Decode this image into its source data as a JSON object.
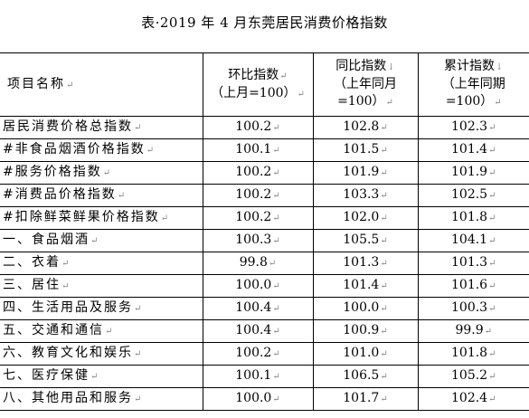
{
  "title": "表·2019 年 4 月东莞居民消费价格指数",
  "headers": {
    "item": "项目名称",
    "mom": [
      "环比指数",
      "（上月=100）"
    ],
    "yoy": [
      "同比指数",
      "（上年同月",
      "=100）"
    ],
    "cum": [
      "累计指数",
      "（上年同期",
      "=100）"
    ]
  },
  "rows": [
    {
      "name": "居民消费价格总指数",
      "mom": "100.2",
      "yoy": "102.8",
      "cum": "102.3"
    },
    {
      "name": "#非食品烟酒价格指数",
      "mom": "100.1",
      "yoy": "101.5",
      "cum": "101.4"
    },
    {
      "name": "#服务价格指数",
      "mom": "100.2",
      "yoy": "101.9",
      "cum": "101.9"
    },
    {
      "name": "#消费品价格指数",
      "mom": "100.2",
      "yoy": "103.3",
      "cum": "102.5"
    },
    {
      "name": "#扣除鲜菜鲜果价格指数",
      "mom": "100.2",
      "yoy": "102.0",
      "cum": "101.8"
    },
    {
      "name": "一、食品烟酒",
      "mom": "100.3",
      "yoy": "105.5",
      "cum": "104.1"
    },
    {
      "name": "二、衣着",
      "mom": "99.8",
      "yoy": "101.3",
      "cum": "101.3"
    },
    {
      "name": "三、居住",
      "mom": "100.0",
      "yoy": "101.4",
      "cum": "101.6"
    },
    {
      "name": "四、生活用品及服务",
      "mom": "100.4",
      "yoy": "100.0",
      "cum": "100.3"
    },
    {
      "name": "五、交通和通信",
      "mom": "100.4",
      "yoy": "100.9",
      "cum": "99.9"
    },
    {
      "name": "六、教育文化和娱乐",
      "mom": "100.2",
      "yoy": "101.0",
      "cum": "101.8"
    },
    {
      "name": "七、医疗保健",
      "mom": "100.1",
      "yoy": "106.5",
      "cum": "105.2"
    },
    {
      "name": "八、其他用品和服务",
      "mom": "100.0",
      "yoy": "101.7",
      "cum": "102.4"
    }
  ]
}
